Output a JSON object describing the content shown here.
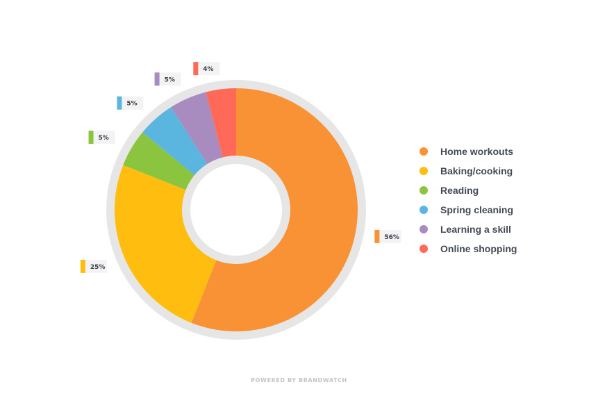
{
  "chart_data": {
    "type": "pie",
    "categories": [
      "Home workouts",
      "Baking/cooking",
      "Reading",
      "Spring cleaning",
      "Learning a skill",
      "Online shopping"
    ],
    "values": [
      56,
      25,
      5,
      5,
      5,
      4
    ],
    "labels": [
      "56%",
      "25%",
      "5%",
      "5%",
      "5%",
      "4%"
    ],
    "colors": [
      "#f99235",
      "#ffbd0f",
      "#8bc53f",
      "#5bb6df",
      "#a98cbf",
      "#ff6a58"
    ],
    "donut": true,
    "legend_position": "right"
  },
  "footer": {
    "text": "POWERED BY BRANDWATCH"
  }
}
